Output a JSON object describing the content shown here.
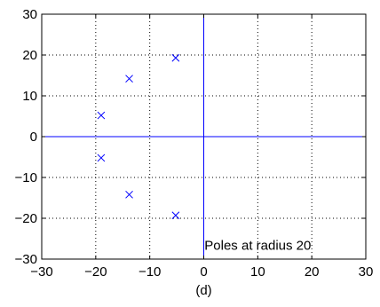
{
  "chart_data": {
    "type": "scatter",
    "title": "",
    "xlabel": "(d)",
    "ylabel": "",
    "xlim": [
      -30,
      30
    ],
    "ylim": [
      -30,
      30
    ],
    "xticks": [
      -30,
      -20,
      -10,
      0,
      10,
      20,
      30
    ],
    "yticks": [
      -30,
      -20,
      -10,
      0,
      10,
      20,
      30
    ],
    "xtick_labels": [
      "−30",
      "−20",
      "−10",
      "0",
      "10",
      "20",
      "30"
    ],
    "ytick_labels": [
      "−30",
      "−20",
      "−10",
      "0",
      "10",
      "20",
      "30"
    ],
    "grid": true,
    "marker": "x",
    "series": [
      {
        "points": [
          {
            "x": -5.2,
            "y": 19.3
          },
          {
            "x": -13.8,
            "y": 14.2
          },
          {
            "x": -19.0,
            "y": 5.2
          },
          {
            "x": -19.0,
            "y": -5.2
          },
          {
            "x": -13.8,
            "y": -14.2
          },
          {
            "x": -5.2,
            "y": -19.3
          }
        ],
        "color": "#0000ff"
      }
    ],
    "reference_lines": [
      {
        "orientation": "horizontal",
        "value": 0,
        "color": "#0000ff"
      },
      {
        "orientation": "vertical",
        "value": 0,
        "color": "#0000ff"
      }
    ],
    "annotations": [
      {
        "text": "Poles at radius 20",
        "x": 10,
        "y": -26.6
      }
    ],
    "colors": {
      "marker": "#0000ff",
      "axes": "#000000",
      "grid": "#000000",
      "background": "#ffffff"
    }
  }
}
